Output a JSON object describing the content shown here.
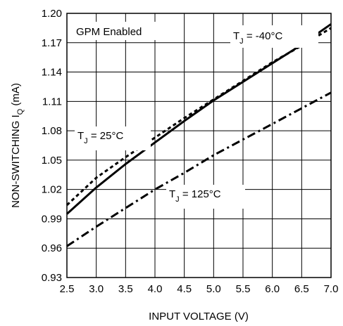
{
  "chart_data": {
    "type": "line",
    "xlabel": "INPUT VOLTAGE (V)",
    "ylabel_main": "NON-SWITCHING I",
    "ylabel_sub": "Q",
    "ylabel_unit": " (mA)",
    "xlim": [
      2.5,
      7.0
    ],
    "ylim": [
      0.93,
      1.2
    ],
    "x_ticks": [
      "2.5",
      "3.0",
      "3.5",
      "4.0",
      "4.5",
      "5.0",
      "5.5",
      "6.0",
      "6.5",
      "7.0"
    ],
    "y_ticks": [
      "1.20",
      "1.17",
      "1.14",
      "1.11",
      "1.08",
      "1.05",
      "1.02",
      "0.99",
      "0.96",
      "0.93"
    ],
    "x_tick_values": [
      2.5,
      3.0,
      3.5,
      4.0,
      4.5,
      5.0,
      5.5,
      6.0,
      6.5,
      7.0
    ],
    "y_tick_values": [
      1.2,
      1.17,
      1.14,
      1.11,
      1.08,
      1.05,
      1.02,
      0.99,
      0.96,
      0.93
    ],
    "grid": true,
    "series": [
      {
        "name": "TJ = -40°C",
        "style": "solid",
        "x": [
          2.5,
          3.0,
          3.5,
          4.0,
          4.5,
          5.0,
          5.5,
          6.0,
          6.5,
          7.0
        ],
        "y": [
          0.995,
          1.022,
          1.046,
          1.068,
          1.09,
          1.111,
          1.13,
          1.149,
          1.168,
          1.189
        ]
      },
      {
        "name": "TJ = 25°C",
        "style": "dashed",
        "x": [
          2.5,
          3.0,
          3.5,
          4.0,
          4.5,
          5.0,
          5.5,
          6.0,
          6.5,
          7.0
        ],
        "y": [
          1.004,
          1.032,
          1.053,
          1.073,
          1.093,
          1.112,
          1.131,
          1.15,
          1.167,
          1.185
        ]
      },
      {
        "name": "TJ = 125°C",
        "style": "dashdot",
        "x": [
          2.5,
          3.0,
          3.5,
          4.0,
          4.5,
          5.0,
          5.5,
          6.0,
          6.5,
          7.0
        ],
        "y": [
          0.962,
          0.982,
          1.001,
          1.02,
          1.037,
          1.055,
          1.071,
          1.087,
          1.103,
          1.119
        ]
      }
    ],
    "annotations": {
      "gpm": "GPM Enabled",
      "tj_m40_pre": "T",
      "tj_m40_sub": "J",
      "tj_m40_post": " = -40°C",
      "tj_25_pre": "T",
      "tj_25_sub": "J",
      "tj_25_post": " = 25°C",
      "tj_125_pre": "T",
      "tj_125_sub": "J",
      "tj_125_post": " = 125°C"
    }
  }
}
